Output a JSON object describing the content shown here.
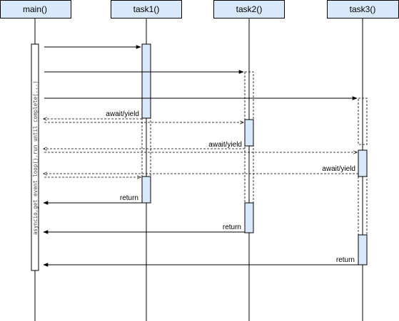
{
  "participants": [
    {
      "id": "main",
      "label": "main()"
    },
    {
      "id": "task1",
      "label": "task1()"
    },
    {
      "id": "task2",
      "label": "task2()"
    },
    {
      "id": "task3",
      "label": "task3()"
    }
  ],
  "main_activation_label": "asyncio.get_event_loop().run_until_complete(...)",
  "messages": {
    "await_yield_1": "await/yield",
    "await_yield_2": "await/yield",
    "await_yield_3": "await/yield",
    "return_1": "return",
    "return_2": "return",
    "return_3": "return"
  },
  "colors": {
    "header_fill": "#dae8fc",
    "activation_fill": "#dae8fc",
    "line": "#000000"
  }
}
